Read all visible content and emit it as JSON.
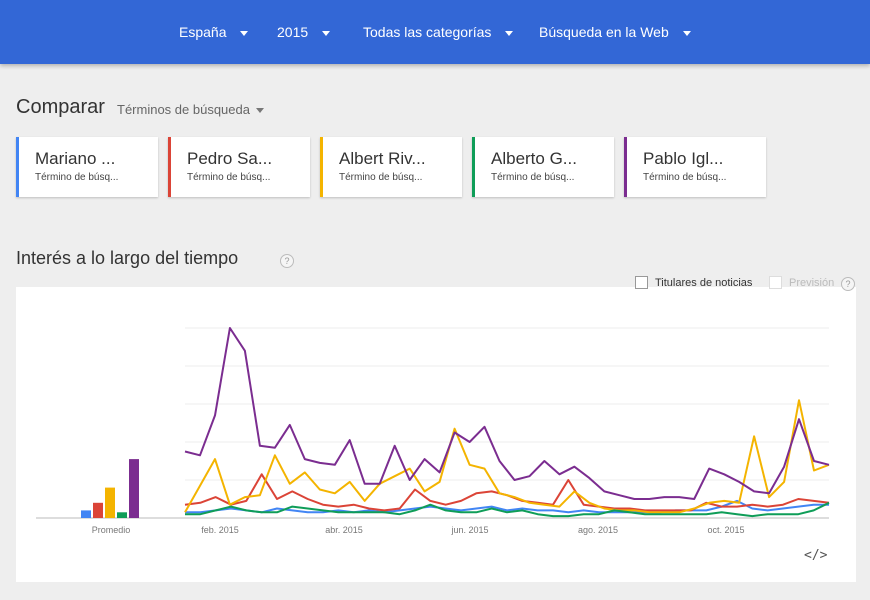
{
  "topbar": {
    "filters": [
      {
        "label": "España"
      },
      {
        "label": "2015"
      },
      {
        "label": "Todas las categorías"
      },
      {
        "label": "Búsqueda en la Web"
      }
    ]
  },
  "compare": {
    "title": "Comparar",
    "type_label": "Términos de búsqueda",
    "terms": [
      {
        "label": "Mariano ...",
        "sub": "Término de búsq...",
        "color": "#4285f4"
      },
      {
        "label": "Pedro Sa...",
        "sub": "Término de búsq...",
        "color": "#db4437"
      },
      {
        "label": "Albert Riv...",
        "sub": "Término de búsq...",
        "color": "#f4b400"
      },
      {
        "label": "Alberto G...",
        "sub": "Término de búsq...",
        "color": "#0f9d58"
      },
      {
        "label": "Pablo Igl...",
        "sub": "Término de búsq...",
        "color": "#7b2d90"
      }
    ]
  },
  "interest": {
    "title": "Interés a lo largo del tiempo",
    "help": "?",
    "news_headlines_label": "Titulares de noticias",
    "forecast_label": "Previsión",
    "embed_label": "</>"
  },
  "chart_data": {
    "type": "line",
    "average_label": "Promedio",
    "average": [
      4,
      8,
      16,
      3,
      31
    ],
    "x_ticks": [
      "feb. 2015",
      "abr. 2015",
      "jun. 2015",
      "ago. 2015",
      "oct. 2015"
    ],
    "ylim": [
      0,
      100
    ],
    "grid": true,
    "series": [
      {
        "color": "#4285f4",
        "values": [
          3,
          3,
          4,
          5,
          4,
          3,
          5,
          4,
          3,
          3,
          4,
          3,
          4,
          3,
          4,
          5,
          6,
          5,
          4,
          5,
          6,
          4,
          5,
          4,
          4,
          3,
          4,
          3,
          3,
          3,
          3,
          3,
          4,
          4,
          4,
          6,
          9,
          5,
          4,
          5,
          6,
          7,
          7
        ]
      },
      {
        "color": "#db4437",
        "values": [
          7,
          8,
          11,
          7,
          9,
          23,
          10,
          14,
          10,
          7,
          6,
          7,
          5,
          4,
          5,
          15,
          9,
          7,
          9,
          13,
          14,
          12,
          9,
          8,
          7,
          20,
          7,
          6,
          5,
          5,
          4,
          4,
          4,
          4,
          8,
          6,
          6,
          7,
          6,
          7,
          10,
          9,
          8
        ]
      },
      {
        "color": "#f4b400",
        "values": [
          3,
          17,
          31,
          7,
          11,
          12,
          33,
          18,
          24,
          15,
          13,
          19,
          9,
          18,
          22,
          26,
          14,
          19,
          47,
          28,
          26,
          13,
          11,
          8,
          7,
          6,
          14,
          8,
          5,
          4,
          4,
          3,
          3,
          3,
          5,
          8,
          9,
          8,
          43,
          11,
          19,
          62,
          25,
          28
        ]
      },
      {
        "color": "#0f9d58",
        "values": [
          2,
          2,
          4,
          6,
          4,
          3,
          3,
          6,
          5,
          4,
          3,
          3,
          3,
          3,
          2,
          4,
          7,
          4,
          3,
          3,
          5,
          3,
          4,
          2,
          1,
          1,
          2,
          2,
          4,
          3,
          2,
          2,
          2,
          2,
          2,
          3,
          2,
          1,
          2,
          2,
          2,
          4,
          8
        ]
      },
      {
        "color": "#7b2d90",
        "values": [
          35,
          33,
          54,
          100,
          88,
          38,
          37,
          49,
          31,
          29,
          28,
          41,
          18,
          18,
          38,
          20,
          31,
          24,
          45,
          40,
          48,
          30,
          20,
          22,
          30,
          23,
          27,
          21,
          14,
          12,
          10,
          10,
          11,
          11,
          10,
          26,
          23,
          19,
          14,
          13,
          27,
          52,
          30,
          28
        ]
      }
    ]
  }
}
